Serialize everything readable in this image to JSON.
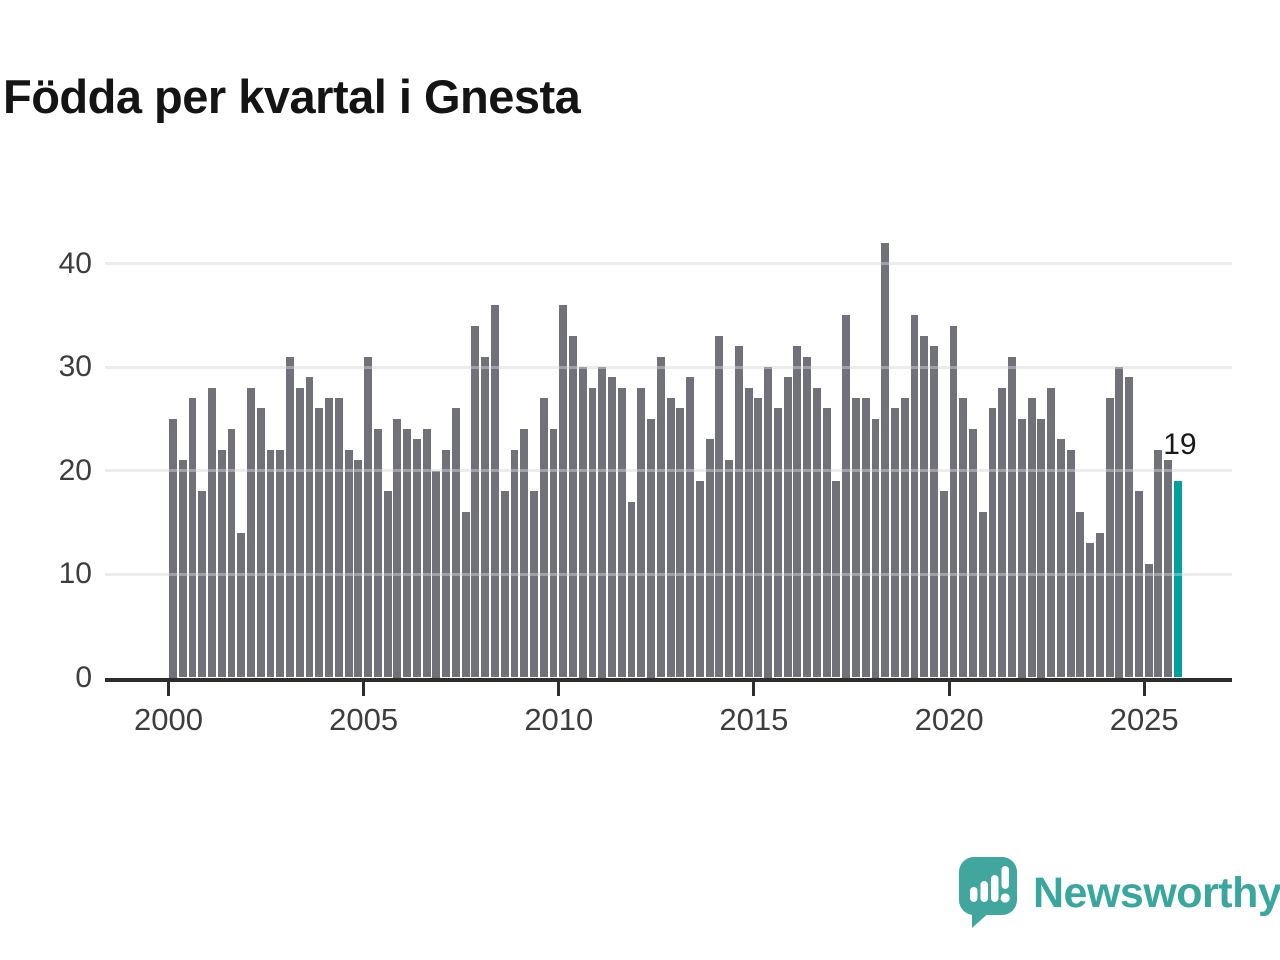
{
  "title": "Födda per kvartal i Gnesta",
  "chart_data": {
    "type": "bar",
    "title": "Födda per kvartal i Gnesta",
    "frequency": "quarterly",
    "period_start": "2000 Q1",
    "period_end": "2025 Q4",
    "values": [
      25,
      21,
      27,
      18,
      28,
      22,
      24,
      14,
      28,
      26,
      22,
      22,
      31,
      28,
      29,
      26,
      27,
      27,
      22,
      21,
      31,
      24,
      18,
      25,
      24,
      23,
      24,
      20,
      22,
      26,
      16,
      34,
      31,
      36,
      18,
      22,
      24,
      18,
      27,
      24,
      36,
      33,
      30,
      28,
      30,
      29,
      28,
      17,
      28,
      25,
      31,
      27,
      26,
      29,
      19,
      23,
      33,
      21,
      32,
      28,
      27,
      30,
      26,
      29,
      32,
      31,
      28,
      26,
      19,
      35,
      27,
      27,
      25,
      42,
      26,
      27,
      35,
      33,
      32,
      18,
      34,
      27,
      24,
      16,
      26,
      28,
      31,
      25,
      27,
      25,
      28,
      23,
      22,
      16,
      13,
      14,
      27,
      30,
      29,
      18,
      11,
      22,
      21,
      19
    ],
    "x_tick_labels": [
      "2000",
      "2005",
      "2010",
      "2015",
      "2020",
      "2025"
    ],
    "y_ticks": [
      0,
      10,
      20,
      30,
      40
    ],
    "y_tick_labels": [
      "0",
      "10",
      "20",
      "30",
      "40"
    ],
    "ylim": [
      0,
      43
    ],
    "grid": "horizontal",
    "legend": "none",
    "bar_color": "#71717a",
    "highlight_color": "#00a29b",
    "highlight_index": 103,
    "last_value_label": "19"
  },
  "logo": {
    "text": "Newsworthy",
    "text_color": "#3aa79e",
    "mark_color": "#41a69e"
  }
}
